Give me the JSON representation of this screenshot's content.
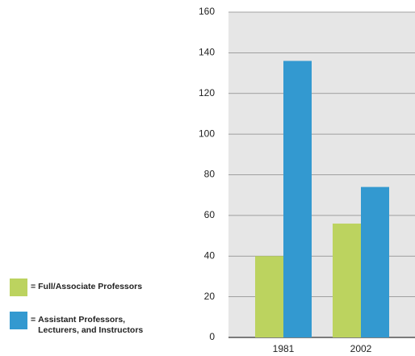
{
  "chart_data": {
    "type": "bar",
    "categories": [
      "1981",
      "2002"
    ],
    "series": [
      {
        "name": "Full/Associate Professors",
        "color": "#bcd35f",
        "values": [
          40,
          56
        ]
      },
      {
        "name": "Assistant Professors, Lecturers, and Instructors",
        "color": "#3399d0",
        "values": [
          136,
          74
        ]
      }
    ],
    "legend_prefix": "=",
    "ylim": [
      0,
      160
    ],
    "yticks": [
      0,
      20,
      40,
      60,
      80,
      100,
      120,
      140,
      160
    ],
    "grid": true,
    "legend_position": "lower left"
  }
}
